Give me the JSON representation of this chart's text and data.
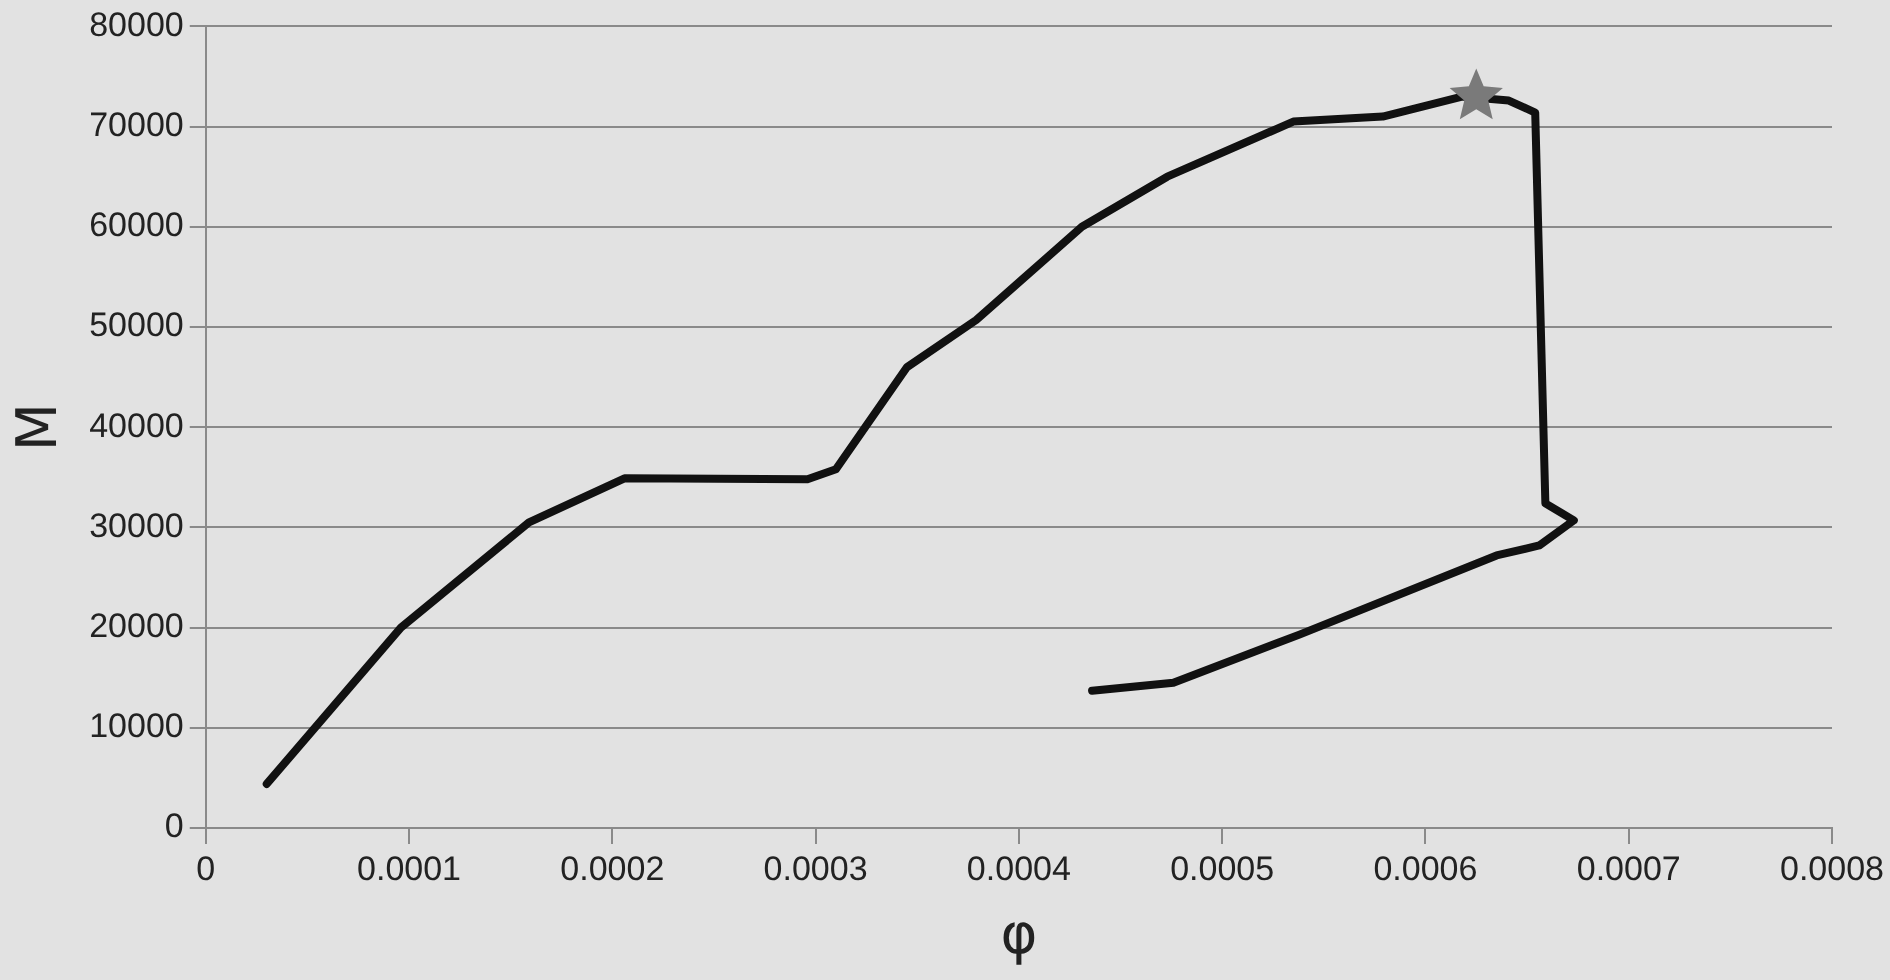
{
  "chart_data": {
    "type": "line",
    "xlabel": "φ",
    "ylabel": "M",
    "xlim": [
      0,
      0.0008
    ],
    "xticks": [
      0,
      0.0001,
      0.0002,
      0.0003,
      0.0004,
      0.0005,
      0.0006,
      0.0007,
      0.0008
    ],
    "ylim": [
      0,
      80000
    ],
    "yticks": [
      0,
      10000,
      20000,
      30000,
      40000,
      50000,
      60000,
      70000,
      80000
    ],
    "grid": "y",
    "legend": false,
    "series": [
      {
        "type": "line",
        "color": "#111111",
        "marker": "none",
        "line_style": "solid",
        "x": [
          3e-05,
          9.6e-05,
          0.000159,
          0.000206,
          0.000296,
          0.00031,
          0.000345,
          0.000379,
          0.000431,
          0.000473,
          0.000535,
          0.000579,
          0.000618,
          0.000641,
          0.000654,
          0.000659,
          0.000673,
          0.000656,
          0.000635,
          0.000538,
          0.000476,
          0.000436
        ],
        "values": [
          4400,
          20000,
          30500,
          34900,
          34800,
          35800,
          46000,
          50700,
          60000,
          65000,
          70500,
          71000,
          73000,
          72600,
          71400,
          32400,
          30700,
          28200,
          27200,
          19300,
          14500,
          13700
        ]
      },
      {
        "type": "scatter",
        "color": "#7a7a7a",
        "marker": "star",
        "x": [
          0.000625
        ],
        "values": [
          73000
        ]
      }
    ]
  }
}
